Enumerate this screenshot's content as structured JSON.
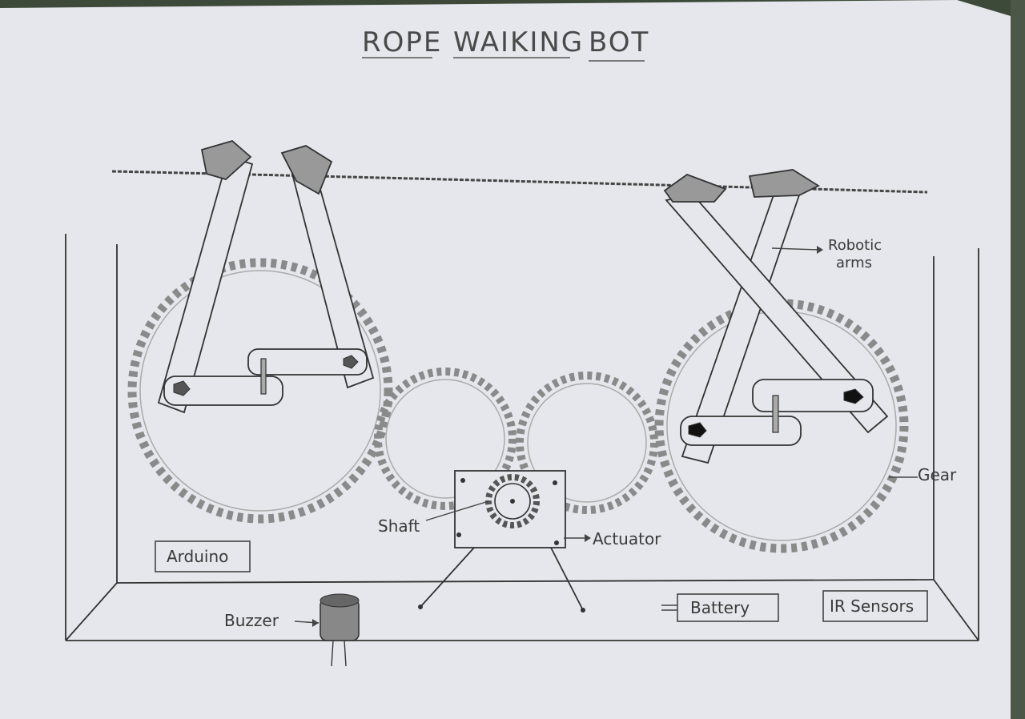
{
  "title": {
    "words": [
      "ROPE",
      "WAIKING",
      "BOT"
    ]
  },
  "labels": {
    "robotic_arms_line1": "Robotic",
    "robotic_arms_line2": "arms",
    "gear": "Gear",
    "shaft": "Shaft",
    "actuator": "Actuator",
    "arduino": "Arduino",
    "buzzer": "Buzzer",
    "battery": "Battery",
    "ir_sensors": "IR Sensors"
  },
  "colors": {
    "paper": "#e6e7ec",
    "ink": "#3a3a3a",
    "shade": "#8a8a8a",
    "pencil": "#9a9a9a"
  }
}
